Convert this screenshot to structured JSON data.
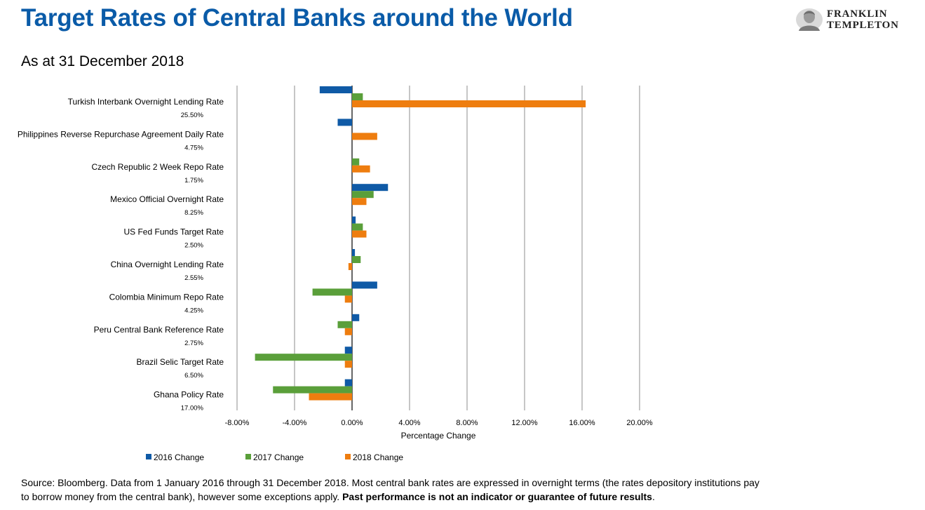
{
  "header": {
    "title": "Target Rates of Central Banks around the World",
    "subtitle": "As at 31 December 2018",
    "logo_line1": "FRANKLIN",
    "logo_line2": "TEMPLETON"
  },
  "footer": {
    "source_text": "Source: Bloomberg. Data from 1 January 2016 through 31 December 2018. Most central bank rates are expressed in overnight terms (the rates depository institutions pay to borrow money from the central bank), however some exceptions apply. ",
    "disclaimer": "Past performance is not an indicator or guarantee of future results",
    "disclaimer_end": "."
  },
  "chart_data": {
    "type": "bar",
    "orientation": "horizontal",
    "title": "",
    "xlabel": "Percentage Change",
    "ylabel": "",
    "xlim": [
      -8,
      20
    ],
    "xticks": [
      "-8.00%",
      "-4.00%",
      "0.00%",
      "4.00%",
      "8.00%",
      "12.00%",
      "16.00%",
      "20.00%"
    ],
    "xtick_values": [
      -8,
      -4,
      0,
      4,
      8,
      12,
      16,
      20
    ],
    "grid": "vertical",
    "legend_position": "bottom-left",
    "categories": [
      "Turkish Interbank Overnight Lending Rate",
      "Philippines Reverse Repurchase Agreement Daily Rate",
      "Czech Republic 2 Week Repo Rate",
      "Mexico Official Overnight Rate",
      "US Fed Funds Target Rate",
      "China Overnight Lending  Rate",
      "Colombia Minimum Repo Rate",
      "Peru Central Bank Reference Rate",
      "Brazil Selic Target Rate",
      "Ghana Policy Rate"
    ],
    "category_rates": [
      "25.50%",
      "4.75%",
      "1.75%",
      "8.25%",
      "2.50%",
      "2.55%",
      "4.25%",
      "2.75%",
      "6.50%",
      "17.00%"
    ],
    "series": [
      {
        "name": "2016 Change",
        "color": "#0f5aa6",
        "values": [
          -2.25,
          -1.0,
          0,
          2.5,
          0.25,
          0.2,
          1.75,
          0.5,
          -0.5,
          -0.5
        ]
      },
      {
        "name": "2017 Change",
        "color": "#5a9f3a",
        "values": [
          0.75,
          0,
          0.5,
          1.5,
          0.75,
          0.6,
          -2.75,
          -1.0,
          -6.75,
          -5.5
        ]
      },
      {
        "name": "2018 Change",
        "color": "#ee7d0f",
        "values": [
          16.25,
          1.75,
          1.25,
          1.0,
          1.0,
          -0.25,
          -0.5,
          -0.5,
          -0.5,
          -3.0
        ]
      }
    ]
  }
}
